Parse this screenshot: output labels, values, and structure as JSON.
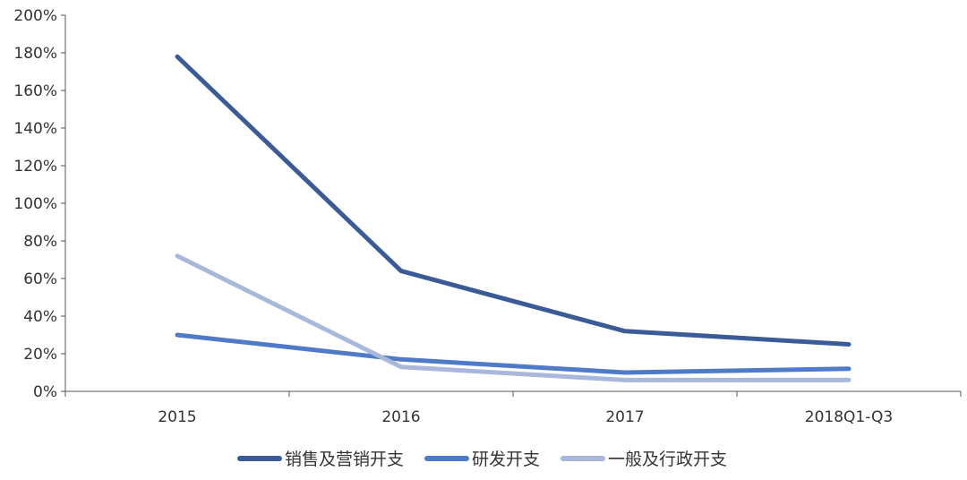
{
  "chart_data": {
    "type": "line",
    "title": "",
    "xlabel": "",
    "ylabel": "",
    "categories": [
      "2015",
      "2016",
      "2017",
      "2018Q1-Q3"
    ],
    "ylim": [
      0,
      200
    ],
    "y_ticks": [
      "0%",
      "20%",
      "40%",
      "60%",
      "80%",
      "100%",
      "120%",
      "140%",
      "160%",
      "180%",
      "200%"
    ],
    "grid": false,
    "legend_position": "bottom",
    "series": [
      {
        "name": "销售及营销开支",
        "color": "#3b5b96",
        "values": [
          178,
          64,
          32,
          25
        ]
      },
      {
        "name": "研发开支",
        "color": "#4f7ac7",
        "values": [
          30,
          17,
          10,
          12
        ]
      },
      {
        "name": "一般及行政开支",
        "color": "#a9b8da",
        "values": [
          72,
          13,
          6,
          6
        ]
      }
    ]
  }
}
